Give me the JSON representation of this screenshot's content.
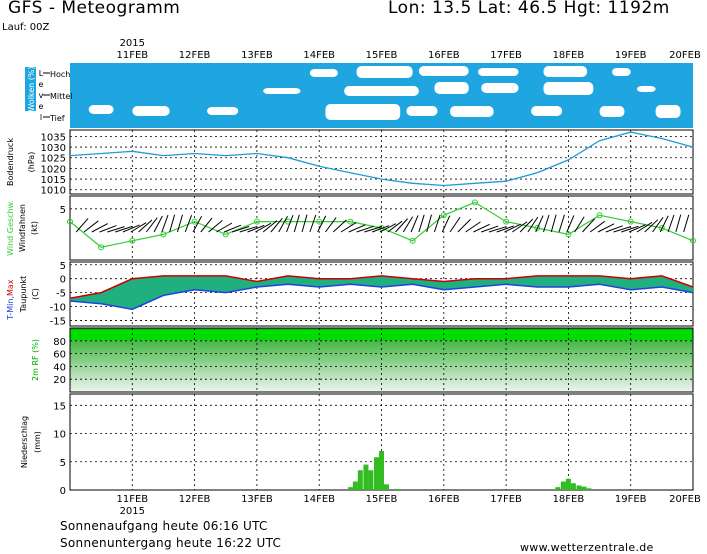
{
  "header": {
    "title": "GFS - Meteogramm",
    "coords": "Lon: 13.5  Lat: 46.5  Hgt: 1192m",
    "run": "Lauf: 00Z"
  },
  "footer": {
    "sunrise": "Sonnenaufgang heute 06:16 UTC",
    "sunset": "Sonnenuntergang heute 16:22 UTC",
    "site": "www.wetterzentrale.de"
  },
  "colors": {
    "cloud_bg": "#1fa6e0",
    "pressure": "#1f9ad6",
    "wind": "#33cc33",
    "tmax": "#cc0000",
    "tmin": "#2040e0",
    "fill": "#20b080",
    "rh": "#00dd00",
    "precip": "#33bb22"
  },
  "chart_data": {
    "type": "meteogram",
    "year": "2015",
    "x_ticks": [
      "11FEB",
      "12FEB",
      "13FEB",
      "14FEB",
      "15FEB",
      "16FEB",
      "17FEB",
      "18FEB",
      "19FEB",
      "20FEB"
    ],
    "panels": [
      {
        "id": "clouds",
        "ylabel": "Wolken (%)",
        "side_label": "Level",
        "levels": [
          "Hoch",
          "Mittel",
          "Tief"
        ]
      },
      {
        "id": "pressure",
        "ylabel": "Bodendruck",
        "unit": "(hPa)",
        "yticks": [
          1010,
          1015,
          1020,
          1025,
          1030,
          1035
        ],
        "ylim": [
          1008,
          1038
        ],
        "x": [
          10.0,
          10.5,
          11.0,
          11.5,
          12.0,
          12.5,
          13.0,
          13.5,
          14.0,
          14.5,
          15.0,
          15.5,
          16.0,
          16.5,
          17.0,
          17.5,
          18.0,
          18.5,
          19.0,
          19.5,
          20.0
        ],
        "values": [
          1026,
          1027,
          1028,
          1026,
          1027,
          1026,
          1027,
          1025,
          1021,
          1018,
          1015,
          1013,
          1012,
          1013,
          1014,
          1018,
          1024,
          1033,
          1037,
          1034,
          1030
        ]
      },
      {
        "id": "wind",
        "ylabel_colored": "Wind Geschw.",
        "ylabel": "Windfahnen",
        "unit": "(kt)",
        "yticks": [
          5
        ],
        "ylim": [
          -3,
          7
        ],
        "x": [
          10.0,
          10.5,
          11.0,
          11.5,
          12.0,
          12.5,
          13.0,
          13.5,
          14.0,
          14.5,
          15.0,
          15.5,
          16.0,
          16.5,
          17.0,
          17.5,
          18.0,
          18.5,
          19.0,
          19.5,
          20.0
        ],
        "values": [
          3,
          -1,
          0,
          1,
          3,
          1,
          3,
          3,
          3,
          3,
          2,
          0,
          4,
          6,
          3,
          2,
          1,
          4,
          3,
          2,
          0
        ]
      },
      {
        "id": "temperature",
        "ylabel_parts": [
          "T-Min",
          "Max"
        ],
        "ylabel": "Taupunkt",
        "unit": "(C)",
        "yticks": [
          5,
          0,
          -5,
          -10,
          -15
        ],
        "ylim": [
          -17,
          6
        ],
        "x": [
          10.0,
          10.5,
          11.0,
          11.5,
          12.0,
          12.5,
          13.0,
          13.5,
          14.0,
          14.5,
          15.0,
          15.5,
          16.0,
          16.5,
          17.0,
          17.5,
          18.0,
          18.5,
          19.0,
          19.5,
          20.0
        ],
        "tmax": [
          -7,
          -5,
          0,
          1,
          1,
          1,
          -1,
          1,
          0,
          0,
          1,
          0,
          -1,
          0,
          0,
          1,
          1,
          1,
          0,
          1,
          -3
        ],
        "tmin": [
          -8,
          -9,
          -11,
          -6,
          -4,
          -5,
          -3,
          -2,
          -3,
          -2,
          -3,
          -2,
          -4,
          -3,
          -2,
          -3,
          -3,
          -2,
          -4,
          -3,
          -5
        ]
      },
      {
        "id": "humidity",
        "ylabel": "2m RF (%)",
        "yticks": [
          20,
          40,
          60,
          80
        ],
        "ylim": [
          0,
          100
        ]
      },
      {
        "id": "precip",
        "ylabel": "Niederschlag",
        "unit": "(mm)",
        "yticks": [
          0,
          5,
          10,
          15
        ],
        "ylim": [
          0,
          17
        ],
        "x": [
          14.5,
          14.58,
          14.66,
          14.75,
          14.83,
          14.92,
          15.0,
          15.08,
          15.25,
          17.83,
          17.92,
          18.0,
          18.08,
          18.17,
          18.25,
          18.33
        ],
        "values": [
          0.5,
          1.5,
          3.5,
          4.5,
          3.5,
          5.8,
          6.9,
          1.0,
          0.2,
          0.5,
          1.5,
          2.0,
          1.2,
          0.8,
          0.6,
          0.3
        ]
      }
    ]
  }
}
